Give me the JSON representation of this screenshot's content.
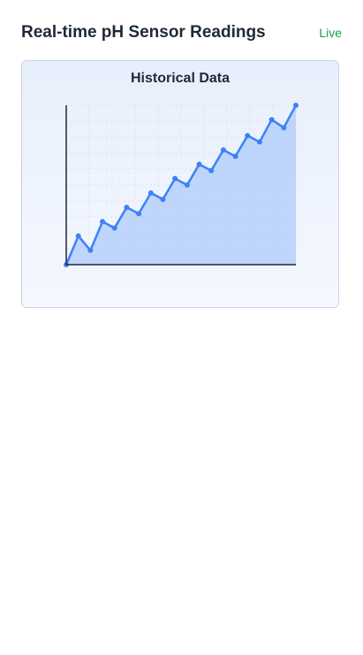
{
  "header": {
    "title": "Real-time pH Sensor Readings",
    "status": "Live"
  },
  "colors": {
    "line": "#3b82f6",
    "fill": "#bcd3fb",
    "status": "#16a34a",
    "axis": "#1f2937",
    "grid": "#dde3ec"
  },
  "chart_data": {
    "type": "area",
    "title": "Historical Data",
    "xlabel": "",
    "ylabel": "",
    "grid": true,
    "x": [
      0,
      1,
      2,
      3,
      4,
      5,
      6,
      7,
      8,
      9,
      10,
      11,
      12,
      13,
      14,
      15,
      16,
      17,
      18,
      19
    ],
    "series": [
      {
        "values": [
          0.0,
          1.8,
          0.9,
          2.7,
          2.3,
          3.6,
          3.2,
          4.5,
          4.1,
          5.4,
          5.0,
          6.3,
          5.9,
          7.2,
          6.8,
          8.1,
          7.7,
          9.1,
          8.6,
          10.0
        ]
      }
    ],
    "xlim": [
      0,
      19
    ],
    "ylim": [
      0,
      10
    ]
  }
}
